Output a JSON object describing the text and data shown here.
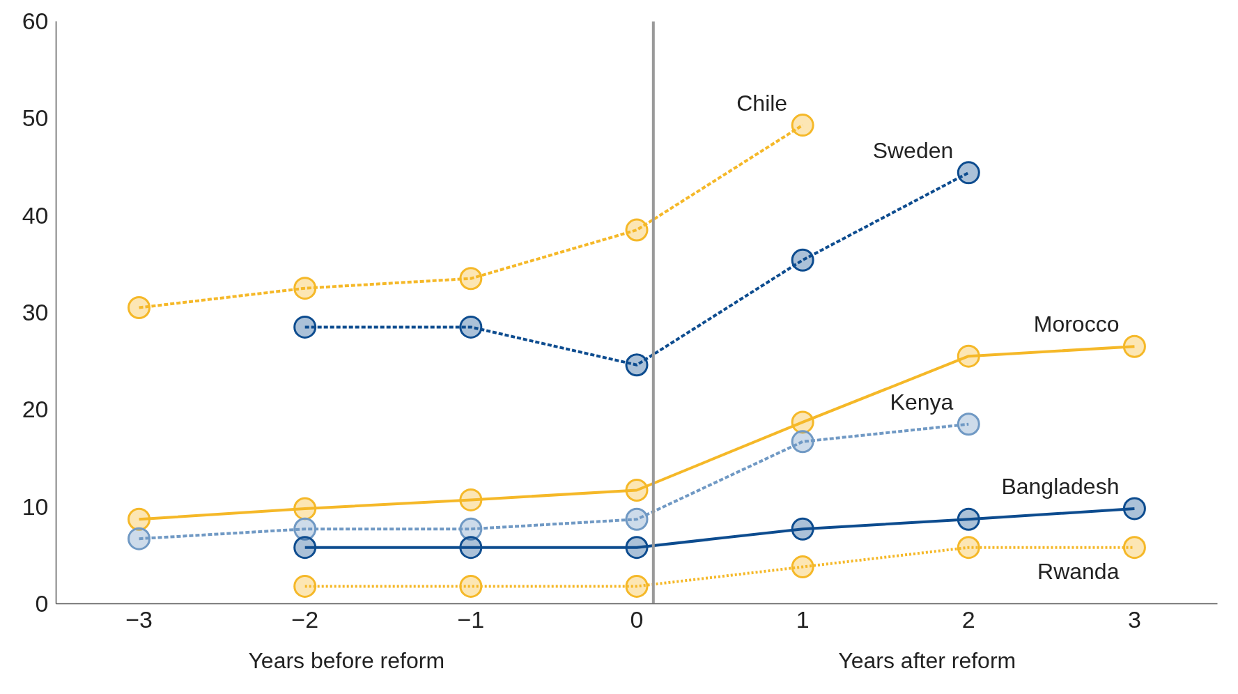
{
  "chart_data": {
    "type": "line",
    "x": [
      -3,
      -2,
      -1,
      0,
      1,
      2,
      3
    ],
    "xlim": [
      -3.5,
      3.5
    ],
    "xticks": [
      -3,
      -2,
      -1,
      0,
      1,
      2,
      3
    ],
    "ylim": [
      0,
      60
    ],
    "yticks": [
      0,
      10,
      20,
      30,
      40,
      50,
      60
    ],
    "grid": false,
    "legend": false,
    "marker": "circle",
    "series": [
      {
        "name": "Chile",
        "color": "#f5b828",
        "line_style": "dashed",
        "values": [
          30.5,
          32.5,
          33.5,
          38.5,
          49.3,
          null,
          null
        ]
      },
      {
        "name": "Sweden",
        "color": "#0d4c8f",
        "line_style": "dashed",
        "values": [
          null,
          28.5,
          28.5,
          24.6,
          35.4,
          44.4,
          null
        ]
      },
      {
        "name": "Morocco",
        "color": "#f5b828",
        "line_style": "solid",
        "values": [
          8.7,
          9.8,
          10.7,
          11.7,
          18.7,
          25.5,
          26.5
        ]
      },
      {
        "name": "Kenya",
        "color": "#7099c4",
        "line_style": "dashed",
        "values": [
          6.7,
          7.7,
          7.7,
          8.7,
          16.7,
          18.5,
          null
        ]
      },
      {
        "name": "Bangladesh",
        "color": "#0d4c8f",
        "line_style": "solid",
        "values": [
          null,
          5.8,
          5.8,
          5.8,
          7.7,
          8.7,
          9.8
        ]
      },
      {
        "name": "Rwanda",
        "color": "#f5b828",
        "line_style": "dotted",
        "values": [
          null,
          1.8,
          1.8,
          1.8,
          3.8,
          5.8,
          5.8
        ]
      }
    ],
    "ref_lines": [
      {
        "axis": "x",
        "value": 0.1,
        "color": "#999999",
        "line_style": "solid"
      }
    ],
    "annotations": [
      "Years before reform",
      "Years after reform"
    ]
  }
}
